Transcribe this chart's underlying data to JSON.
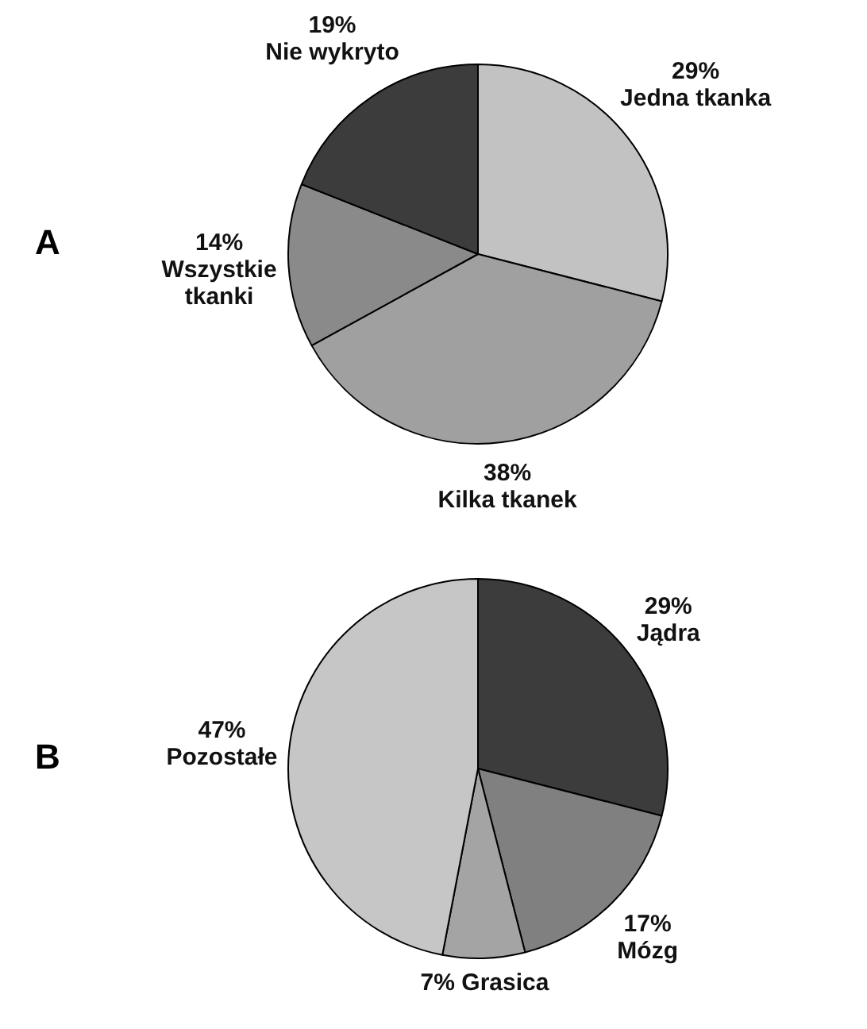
{
  "chart_data": [
    {
      "type": "pie",
      "title": "A",
      "categories": [
        "Jedna tkanka",
        "Kilka tkanek",
        "Wszystkie tkanki",
        "Nie wykryto"
      ],
      "values": [
        29,
        38,
        14,
        19
      ],
      "value_labels": [
        "29%",
        "38%",
        "14%",
        "19%"
      ],
      "colors": [
        "#c2c2c2",
        "#a0a0a0",
        "#8a8a8a",
        "#3c3c3c"
      ],
      "legend": false
    },
    {
      "type": "pie",
      "title": "B",
      "categories": [
        "Jądra",
        "Mózg",
        "Grasica",
        "Pozostałe"
      ],
      "values": [
        29,
        17,
        7,
        47
      ],
      "value_labels": [
        "29%",
        "17%",
        "7%",
        "47%"
      ],
      "colors": [
        "#3c3c3c",
        "#808080",
        "#a4a4a4",
        "#c6c6c6"
      ],
      "legend": false
    }
  ]
}
